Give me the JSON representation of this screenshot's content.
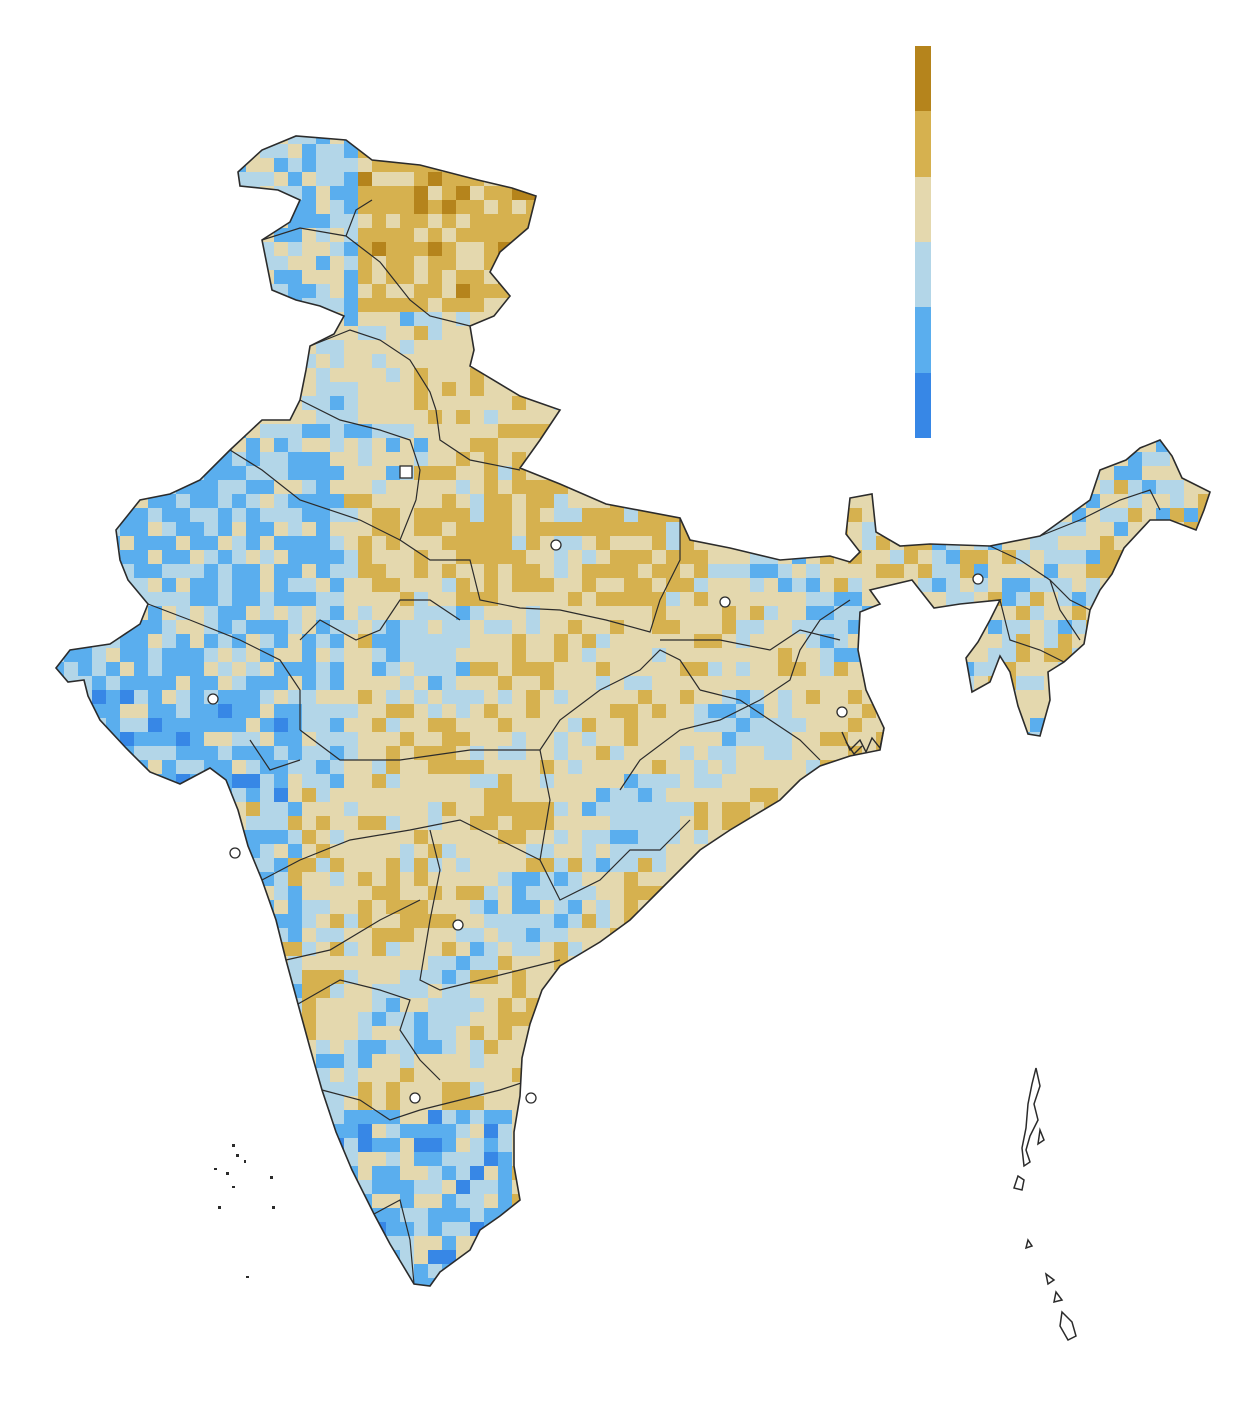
{
  "map": {
    "region": "India",
    "style": "gridded choropleth with state boundaries",
    "background": "#ffffff",
    "boundary_color": "#2b2b2b",
    "marker_fill": "#ffffff",
    "marker_stroke": "#2b2b2b"
  },
  "legend": {
    "classes": [
      {
        "color": "#b5841c"
      },
      {
        "color": "#d6b14f"
      },
      {
        "color": "#e4d8ae"
      },
      {
        "color": "#b3d6e8"
      },
      {
        "color": "#5aaeee"
      },
      {
        "color": "#3787e6"
      }
    ]
  },
  "palette": {
    "dark_brown": "#b5841c",
    "mustard": "#d6b14f",
    "beige": "#e4d8ae",
    "light_blue": "#b3d6e8",
    "mid_blue": "#5aaeee",
    "deep_blue": "#3787e6"
  }
}
